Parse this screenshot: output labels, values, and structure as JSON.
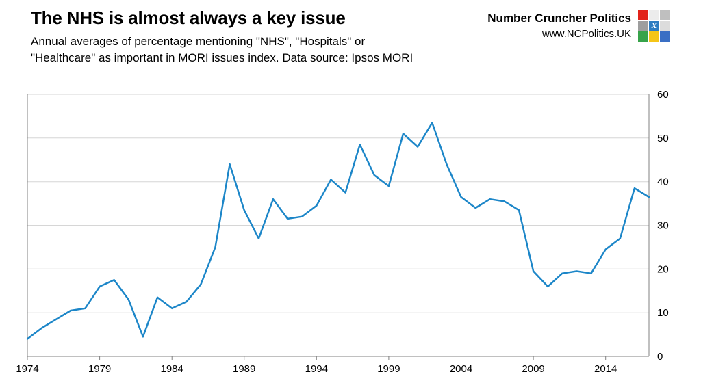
{
  "header": {
    "title": "The NHS is almost always a key issue",
    "subtitle_line1": "Annual averages of percentage mentioning \"NHS\", \"Hospitals\" or",
    "subtitle_line2": "\"Healthcare\" as important in MORI issues index. Data source: Ipsos MORI"
  },
  "brand": {
    "name": "Number Cruncher Politics",
    "url": "www.NCPolitics.UK",
    "logo_letter": "X",
    "logo_x_index": 4,
    "logo_colors": [
      "#e2231a",
      "#ececec",
      "#bfbfbf",
      "#9e9e9e",
      "#2d7cc1",
      "#dcdcdc",
      "#37a34a",
      "#f5c518",
      "#3a6fc4"
    ]
  },
  "colors": {
    "line": "#1c86c8",
    "grid": "#d6d6d6",
    "axis": "#808080",
    "text": "#000000"
  },
  "chart_data": {
    "type": "line",
    "title": "The NHS is almost always a key issue",
    "series_name": "% mentioning NHS / Hospitals / Healthcare as an important issue",
    "x": [
      1974,
      1975,
      1976,
      1977,
      1978,
      1979,
      1980,
      1981,
      1982,
      1983,
      1984,
      1985,
      1986,
      1987,
      1988,
      1989,
      1990,
      1991,
      1992,
      1993,
      1994,
      1995,
      1996,
      1997,
      1998,
      1999,
      2000,
      2001,
      2002,
      2003,
      2004,
      2005,
      2006,
      2007,
      2008,
      2009,
      2010,
      2011,
      2012,
      2013,
      2014,
      2015,
      2016,
      2017
    ],
    "values": [
      4,
      6.5,
      8.5,
      10.5,
      11,
      16,
      17.5,
      13,
      4.5,
      13.5,
      11,
      12.5,
      16.5,
      25,
      44,
      33.5,
      27,
      36,
      31.5,
      32,
      34.5,
      40.5,
      37.5,
      48.5,
      41.5,
      39,
      51,
      48,
      53.5,
      44,
      36.5,
      34,
      36,
      35.5,
      33.5,
      19.5,
      16,
      19,
      19.5,
      19,
      24.5,
      27,
      38.5,
      36.5
    ],
    "xlabel": "",
    "ylabel": "",
    "ylim": [
      0,
      60
    ],
    "yticks": [
      0,
      10,
      20,
      30,
      40,
      50,
      60
    ],
    "xticks": [
      1974,
      1979,
      1984,
      1989,
      1994,
      1999,
      2004,
      2009,
      2014
    ],
    "grid": "horizontal",
    "legend": "none",
    "y_axis_side": "right"
  }
}
